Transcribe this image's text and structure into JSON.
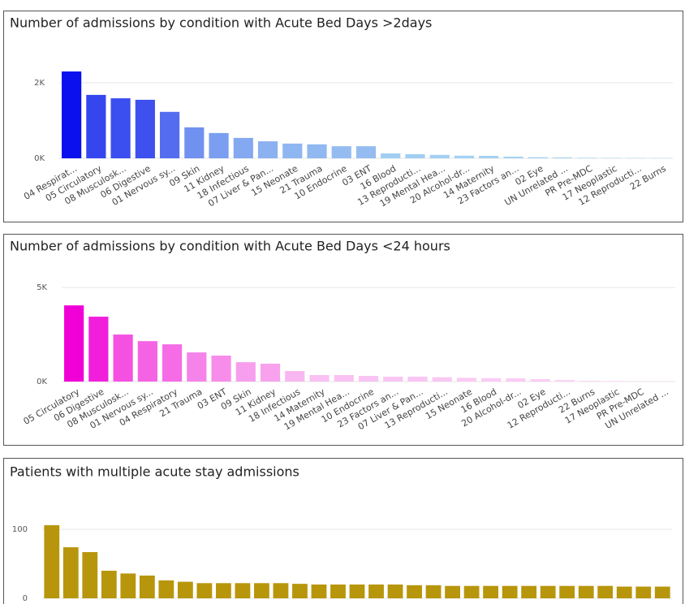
{
  "chart_data": [
    {
      "type": "bar",
      "title": "Number of admissions by condition with Acute Bed Days >2days",
      "categories": [
        "04 Respirat...",
        "05 Circulatory",
        "08 Musculosk...",
        "06 Digestive",
        "01 Nervous sy...",
        "09 Skin",
        "11 Kidney",
        "18 Infectious",
        "07 Liver & Pan...",
        "15 Neonate",
        "21 Trauma",
        "10 Endocrine",
        "03 ENT",
        "16 Blood",
        "13 Reproducti...",
        "19 Mental Hea...",
        "20 Alcohol-dr...",
        "14 Maternity",
        "23 Factors an...",
        "02 Eye",
        "UN Unrelated ...",
        "PR Pre-MDC",
        "17 Neoplastic",
        "12 Reproducti...",
        "22 Burns"
      ],
      "values": [
        2300,
        1680,
        1590,
        1550,
        1230,
        820,
        670,
        540,
        450,
        390,
        370,
        320,
        320,
        130,
        110,
        90,
        70,
        65,
        45,
        30,
        25,
        15,
        12,
        10,
        8
      ],
      "colors": [
        "#0a10ee",
        "#aad8f2"
      ],
      "ylim": [
        0,
        3000
      ],
      "yticks": [
        {
          "value": 0,
          "label": "0K"
        },
        {
          "value": 2000,
          "label": "2K"
        }
      ],
      "grid": true
    },
    {
      "type": "bar",
      "title": "Number of admissions by condition with Acute Bed Days <24 hours",
      "categories": [
        "05 Circulatory",
        "06 Digestive",
        "08 Musculosk...",
        "01 Nervous sy...",
        "04 Respiratory",
        "21 Trauma",
        "03 ENT",
        "09 Skin",
        "11 Kidney",
        "18 Infectious",
        "14 Maternity",
        "19 Mental Hea...",
        "10 Endocrine",
        "23 Factors an...",
        "07 Liver & Pan...",
        "13 Reproducti...",
        "15 Neonate",
        "16 Blood",
        "20 Alcohol-dr...",
        "02 Eye",
        "12 Reproducti...",
        "22 Burns",
        "17 Neoplastic",
        "PR Pre-MDC",
        "UN Unrelated ..."
      ],
      "values": [
        4050,
        3450,
        2500,
        2150,
        1980,
        1550,
        1380,
        1030,
        950,
        560,
        345,
        345,
        300,
        260,
        260,
        230,
        200,
        180,
        170,
        130,
        80,
        40,
        30,
        20,
        15
      ],
      "colors": [
        "#f000d6",
        "#fad4f6"
      ],
      "ylim": [
        0,
        6000
      ],
      "yticks": [
        {
          "value": 0,
          "label": "0K"
        },
        {
          "value": 5000,
          "label": "5K"
        }
      ],
      "grid": true
    },
    {
      "type": "bar",
      "title": "Patients with multiple acute stay admissions",
      "categories": [
        null,
        null,
        null,
        null,
        null,
        null,
        null,
        null,
        null,
        null,
        null,
        null,
        null,
        null,
        null,
        null,
        null,
        null,
        null,
        null,
        null,
        null,
        null,
        null,
        null,
        null,
        null,
        null,
        null,
        null,
        null,
        null,
        null
      ],
      "values": [
        106,
        74,
        67,
        40,
        36,
        33,
        26,
        24,
        22,
        22,
        22,
        22,
        22,
        21,
        20,
        20,
        20,
        20,
        20,
        19,
        19,
        18,
        18,
        18,
        18,
        18,
        18,
        18,
        18,
        18,
        17,
        17,
        17
      ],
      "color": "#b8960c",
      "ylim": [
        0,
        150
      ],
      "yticks": [
        0,
        100
      ],
      "grid": true
    }
  ]
}
